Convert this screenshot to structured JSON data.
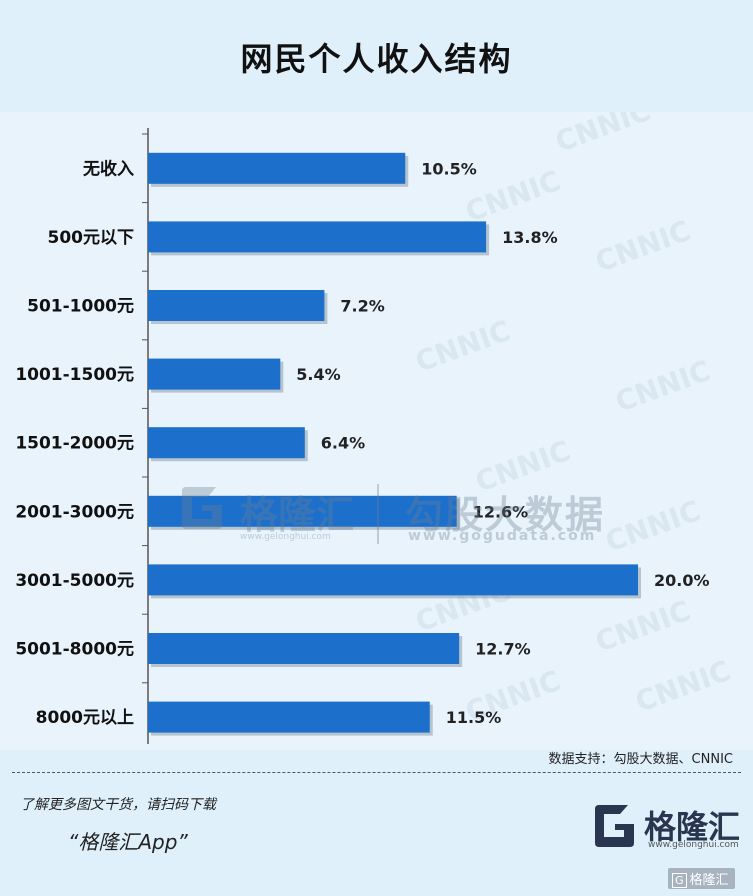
{
  "header": {
    "title": "网民个人收入结构"
  },
  "watermark": {
    "logo_name": "格隆汇",
    "logo_sub": "www.gelonghui.com",
    "brand": "勾股大数据",
    "url": "www.gogudata.com",
    "bg_text": "CNNIC"
  },
  "chart_data": {
    "type": "bar",
    "orientation": "horizontal",
    "categories": [
      "无收入",
      "500元以下",
      "501-1000元",
      "1001-1500元",
      "1501-2000元",
      "2001-3000元",
      "3001-5000元",
      "5001-8000元",
      "8000元以上"
    ],
    "values": [
      10.5,
      13.8,
      7.2,
      5.4,
      6.4,
      12.6,
      20.0,
      12.7,
      11.5
    ],
    "value_labels": [
      "10.5%",
      "13.8%",
      "7.2%",
      "5.4%",
      "6.4%",
      "12.6%",
      "20.0%",
      "12.7%",
      "11.5%"
    ],
    "xlim": [
      0,
      20
    ],
    "grid": false,
    "bar_color": "#1c6fcb"
  },
  "source": {
    "text": "数据支持：勾股大数据、CNNIC"
  },
  "footer": {
    "line1": "了解更多图文干货，请扫码下载",
    "line2": "“格隆汇App”",
    "logo_name": "格隆汇",
    "logo_url": "www.gelonghui.com",
    "corner_mark": "格隆汇"
  }
}
